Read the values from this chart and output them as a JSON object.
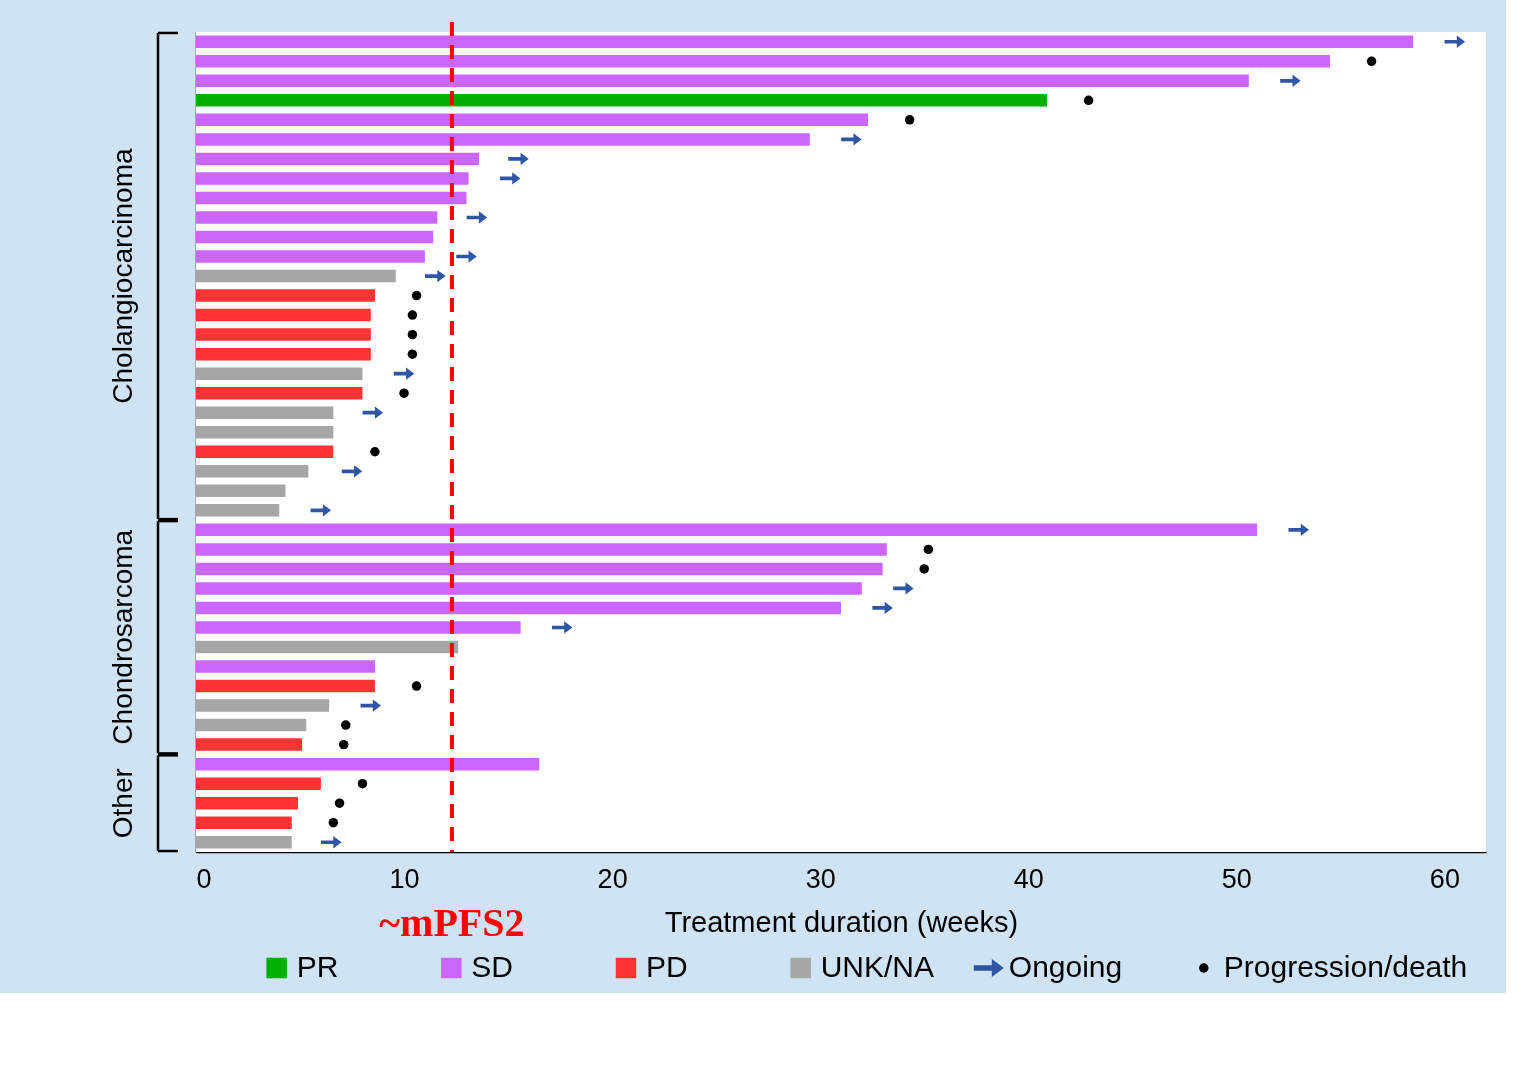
{
  "chart_data": {
    "type": "bar",
    "orientation": "horizontal",
    "tick_labels": "x",
    "grid": false,
    "legend": "bottom",
    "xlabel": "Treatment duration (weeks)",
    "xlim": [
      0,
      62
    ],
    "xticks": [
      0,
      10,
      20,
      30,
      40,
      50,
      60
    ],
    "categories": [
      null,
      null,
      null,
      null,
      null,
      null,
      null,
      null,
      null,
      null,
      null,
      null,
      null,
      null,
      null,
      null,
      null,
      null,
      null,
      null,
      null,
      null,
      null,
      null,
      null,
      null,
      null,
      null,
      null,
      null,
      null,
      null,
      null,
      null,
      null,
      null,
      null,
      null,
      null,
      null,
      null,
      null
    ],
    "series": [
      {
        "name": "PR",
        "color": "#00b000",
        "values": [
          null,
          null,
          null,
          40.9,
          null,
          null,
          null,
          null,
          null,
          null,
          null,
          null,
          null,
          null,
          null,
          null,
          null,
          null,
          null,
          null,
          null,
          null,
          null,
          null,
          null,
          null,
          null,
          null,
          null,
          null,
          null,
          null,
          null,
          null,
          null,
          null,
          null,
          null,
          null,
          null,
          null,
          null
        ]
      },
      {
        "name": "SD",
        "color": "#cc66ff",
        "values": [
          58.5,
          54.5,
          50.6,
          null,
          32.3,
          29.5,
          13.6,
          13.1,
          13.0,
          11.6,
          11.4,
          11.0,
          null,
          null,
          null,
          null,
          null,
          null,
          null,
          null,
          null,
          null,
          null,
          null,
          null,
          51.0,
          33.2,
          33.0,
          32.0,
          31.0,
          15.6,
          null,
          8.6,
          null,
          null,
          null,
          null,
          16.5,
          null,
          null,
          null,
          null
        ]
      },
      {
        "name": "PD",
        "color": "#ff3333",
        "values": [
          null,
          null,
          null,
          null,
          null,
          null,
          null,
          null,
          null,
          null,
          null,
          null,
          null,
          8.6,
          8.4,
          8.4,
          8.4,
          null,
          8.0,
          null,
          null,
          6.6,
          null,
          null,
          null,
          null,
          null,
          null,
          null,
          null,
          null,
          null,
          null,
          8.6,
          null,
          null,
          5.1,
          null,
          6.0,
          4.9,
          4.6,
          null
        ]
      },
      {
        "name": "UNK/NA",
        "color": "#a6a6a6",
        "values": [
          null,
          null,
          null,
          null,
          null,
          null,
          null,
          null,
          null,
          null,
          null,
          null,
          9.6,
          null,
          null,
          null,
          null,
          8.0,
          null,
          6.6,
          6.6,
          null,
          5.4,
          4.3,
          4.0,
          null,
          null,
          null,
          null,
          null,
          null,
          12.6,
          null,
          null,
          6.4,
          5.3,
          null,
          null,
          null,
          null,
          null,
          4.6
        ]
      },
      {
        "name": "Ongoing",
        "type": "scatter",
        "color": "#2f55a4",
        "values": [
          60.5,
          null,
          52.6,
          null,
          null,
          31.5,
          15.5,
          15.1,
          null,
          13.5,
          null,
          13.0,
          11.5,
          null,
          null,
          null,
          null,
          10.0,
          null,
          8.5,
          null,
          null,
          7.5,
          null,
          6.0,
          53.0,
          null,
          null,
          34.0,
          33.0,
          17.6,
          null,
          null,
          null,
          8.4,
          null,
          null,
          null,
          null,
          null,
          null,
          6.5
        ]
      },
      {
        "name": "Progression/death",
        "type": "scatter",
        "marker": "circle",
        "color": "#000000",
        "values": [
          null,
          56.5,
          null,
          42.9,
          34.3,
          null,
          null,
          null,
          null,
          null,
          null,
          null,
          null,
          10.6,
          10.4,
          10.4,
          10.4,
          null,
          10.0,
          null,
          null,
          8.6,
          null,
          null,
          null,
          null,
          35.2,
          35.0,
          null,
          null,
          null,
          null,
          null,
          10.6,
          null,
          7.2,
          7.1,
          null,
          8.0,
          6.9,
          6.6,
          null
        ]
      }
    ],
    "ref_lines": [
      {
        "axis": "x",
        "value": 12.3,
        "label": "~mPFS2",
        "color": "#ff0000",
        "line_style": "dashed"
      }
    ],
    "annotations": [
      "Cholangiocarcinoma",
      "Chondrosarcoma",
      "Other"
    ]
  }
}
